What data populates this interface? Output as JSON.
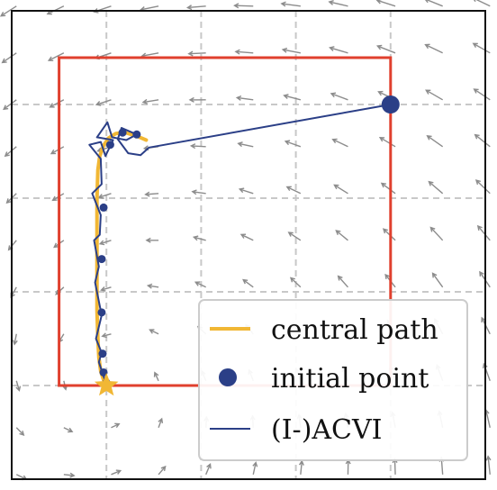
{
  "chart_data": {
    "type": "line",
    "title": "",
    "xlabel": "",
    "ylabel": "",
    "xlim": [
      -0.1,
      0.4
    ],
    "ylim": [
      -0.1,
      0.4
    ],
    "grid": true,
    "legend_position": "bottom-right",
    "legend": {
      "central_path": "central path",
      "initial_point": "initial point",
      "acvi": "(I-)ACVI"
    },
    "colors": {
      "central_path": "#f1b734",
      "acvi": "#2b3f87",
      "initial_point": "#2b3f87",
      "box": "#e0402e",
      "field": "#8c8c8c",
      "grid": "#c8c8c8"
    },
    "constraint_box": {
      "x": [
        -0.05,
        0.3
      ],
      "y": [
        0.0,
        0.35
      ]
    },
    "initial_point": [
      0.3,
      0.3
    ],
    "solution": [
      0.0,
      0.0
    ],
    "central_path": [
      [
        0.042,
        0.262
      ],
      [
        0.033,
        0.266
      ],
      [
        0.02,
        0.27
      ],
      [
        0.01,
        0.269
      ],
      [
        0.002,
        0.264
      ],
      [
        -0.003,
        0.256
      ],
      [
        -0.007,
        0.245
      ],
      [
        -0.009,
        0.23
      ],
      [
        -0.01,
        0.2
      ],
      [
        -0.01,
        0.17
      ],
      [
        -0.01,
        0.14
      ],
      [
        -0.01,
        0.11
      ],
      [
        -0.01,
        0.08
      ],
      [
        -0.009,
        0.05
      ],
      [
        -0.008,
        0.03
      ],
      [
        -0.006,
        0.015
      ],
      [
        -0.003,
        0.006
      ],
      [
        0.0,
        0.0
      ]
    ],
    "acvi_path": [
      [
        0.3,
        0.3
      ],
      [
        0.045,
        0.254
      ],
      [
        0.036,
        0.246
      ],
      [
        0.023,
        0.248
      ],
      [
        0.012,
        0.263
      ],
      [
        0.016,
        0.275
      ],
      [
        0.032,
        0.268
      ],
      [
        0.021,
        0.262
      ],
      [
        0.006,
        0.265
      ],
      [
        0.001,
        0.281
      ],
      [
        -0.01,
        0.265
      ],
      [
        0.007,
        0.262
      ],
      [
        -0.001,
        0.245
      ],
      [
        -0.006,
        0.26
      ],
      [
        -0.018,
        0.257
      ],
      [
        -0.006,
        0.242
      ],
      [
        -0.005,
        0.215
      ],
      [
        -0.015,
        0.205
      ],
      [
        -0.006,
        0.182
      ],
      [
        -0.007,
        0.161
      ],
      [
        -0.013,
        0.155
      ],
      [
        -0.008,
        0.127
      ],
      [
        -0.012,
        0.11
      ],
      [
        -0.005,
        0.075
      ],
      [
        -0.011,
        0.05
      ],
      [
        -0.005,
        0.035
      ],
      [
        -0.008,
        0.025
      ],
      [
        -0.004,
        0.013
      ],
      [
        -0.001,
        0.004
      ],
      [
        0.0,
        0.0
      ]
    ],
    "acvi_markers": [
      [
        0.032,
        0.268
      ],
      [
        0.017,
        0.27
      ],
      [
        0.004,
        0.257
      ],
      [
        -0.003,
        0.19
      ],
      [
        -0.005,
        0.135
      ],
      [
        -0.005,
        0.078
      ],
      [
        -0.004,
        0.034
      ],
      [
        -0.003,
        0.014
      ],
      [
        0.0,
        0.003
      ]
    ],
    "vector_field": {
      "form": "rotational",
      "center": [
        0.0,
        0.0
      ]
    }
  }
}
